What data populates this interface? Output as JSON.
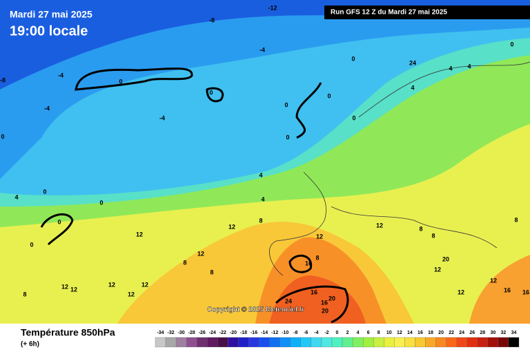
{
  "header": {
    "date": "Mardi 27 mai 2025",
    "time": "19:00 locale",
    "run": "Run GFS 12 Z du Mardi 27 mai 2025"
  },
  "copyright": "Copyright © 2025 Meteociel.fr",
  "footer": {
    "title": "Température 850hPa",
    "subtitle": "(+ 6h)"
  },
  "legend": {
    "labels": [
      -34,
      -32,
      -30,
      -28,
      -26,
      -24,
      -22,
      -20,
      -18,
      -16,
      -14,
      -12,
      -10,
      -8,
      -6,
      -4,
      -2,
      0,
      2,
      4,
      6,
      8,
      10,
      12,
      14,
      16,
      18,
      20,
      22,
      24,
      26,
      28,
      30,
      32,
      34
    ],
    "colors": [
      "#c8c8c8",
      "#a8a8a8",
      "#a080a0",
      "#905090",
      "#703070",
      "#601860",
      "#481048",
      "#3010a0",
      "#2020c8",
      "#2838e0",
      "#1850f0",
      "#1070f0",
      "#1090f8",
      "#10b0f8",
      "#20c8f8",
      "#40d8f0",
      "#50e8e0",
      "#50f0c0",
      "#60f090",
      "#80f060",
      "#a0f040",
      "#c8f040",
      "#e8f040",
      "#f8f050",
      "#f8e040",
      "#f8c830",
      "#f8a828",
      "#f88820",
      "#f86818",
      "#f04818",
      "#e03010",
      "#c82010",
      "#a01008",
      "#780808",
      "#000000"
    ]
  },
  "contour_labels": [
    -12,
    -8,
    -4,
    -4,
    -4,
    -4,
    -8,
    0,
    0,
    0,
    0,
    0,
    0,
    0,
    0,
    0,
    0,
    0,
    0,
    0,
    4,
    4,
    4,
    4,
    4,
    4,
    8,
    12,
    12,
    12,
    12,
    8,
    8,
    8,
    12,
    8,
    8,
    8,
    16,
    20,
    12,
    12,
    12,
    12,
    12,
    12,
    12,
    12,
    16,
    16,
    16,
    20,
    24,
    16,
    20,
    24,
    8
  ]
}
